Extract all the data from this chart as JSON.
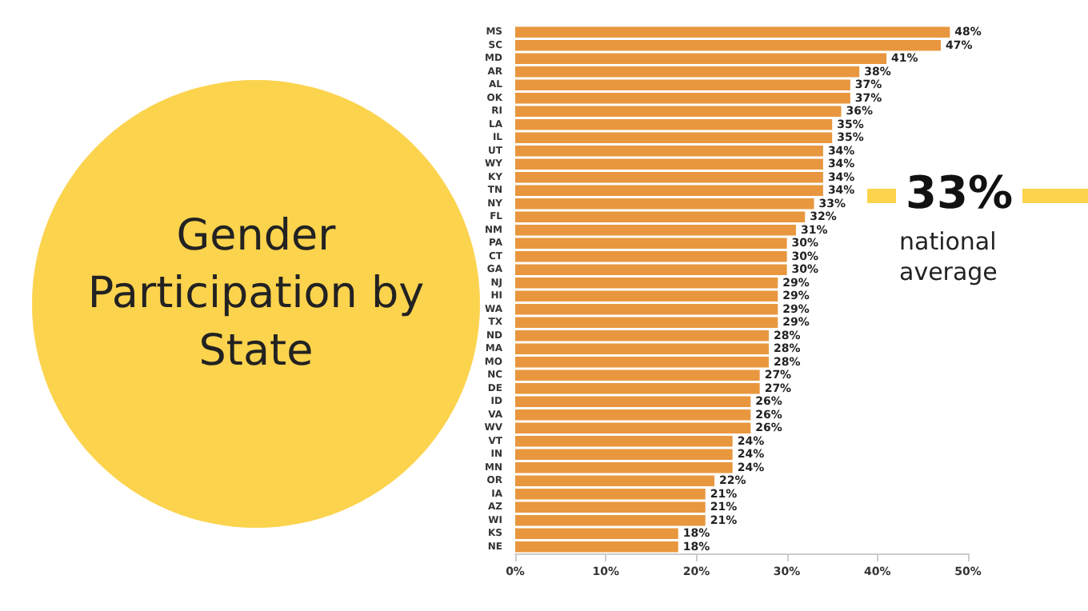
{
  "chart_data": {
    "type": "bar",
    "orientation": "horizontal",
    "title": "Gender Participation by State",
    "categories": [
      "MS",
      "SC",
      "MD",
      "AR",
      "AL",
      "OK",
      "RI",
      "LA",
      "IL",
      "UT",
      "WY",
      "KY",
      "TN",
      "NY",
      "FL",
      "NM",
      "PA",
      "CT",
      "GA",
      "NJ",
      "HI",
      "WA",
      "TX",
      "ND",
      "MA",
      "MO",
      "NC",
      "DE",
      "ID",
      "VA",
      "WV",
      "VT",
      "IN",
      "MN",
      "OR",
      "IA",
      "AZ",
      "WI",
      "KS",
      "NE"
    ],
    "values": [
      48,
      47,
      41,
      38,
      37,
      37,
      36,
      35,
      35,
      34,
      34,
      34,
      34,
      33,
      32,
      31,
      30,
      30,
      30,
      29,
      29,
      29,
      29,
      28,
      28,
      28,
      27,
      27,
      26,
      26,
      26,
      24,
      24,
      24,
      22,
      21,
      21,
      21,
      18,
      18
    ],
    "value_labels": [
      "48%",
      "47%",
      "41%",
      "38%",
      "37%",
      "37%",
      "36%",
      "35%",
      "35%",
      "34%",
      "34%",
      "34%",
      "34%",
      "33%",
      "32%",
      "31%",
      "30%",
      "30%",
      "30%",
      "29%",
      "29%",
      "29%",
      "29%",
      "28%",
      "28%",
      "28%",
      "27%",
      "27%",
      "26%",
      "26%",
      "26%",
      "24%",
      "24%",
      "24%",
      "22%",
      "21%",
      "21%",
      "21%",
      "18%",
      "18%"
    ],
    "color": "#e8973f",
    "xlim": [
      0,
      50
    ],
    "xticks": [
      {
        "value": 0,
        "label": "0%"
      },
      {
        "value": 10,
        "label": "10%"
      },
      {
        "value": 20,
        "label": "20%"
      },
      {
        "value": 30,
        "label": "30%"
      },
      {
        "value": 40,
        "label": "40%"
      },
      {
        "value": 50,
        "label": "50%"
      }
    ],
    "grid": false,
    "annotations": [
      "33%",
      "national average"
    ]
  }
}
